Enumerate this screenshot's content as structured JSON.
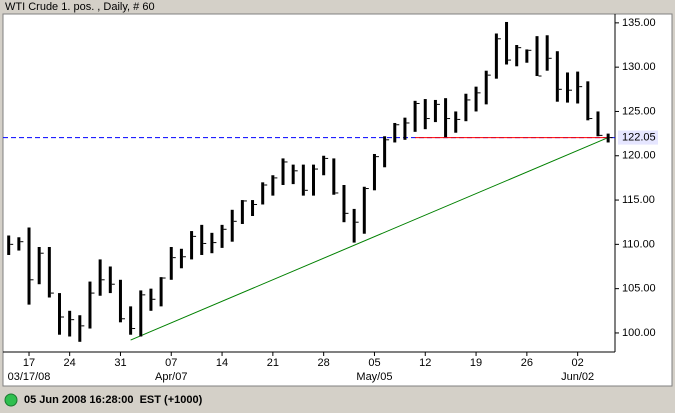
{
  "chart_data": {
    "type": "hlc",
    "title": "WTI Crude 1. pos. , Daily, # 60",
    "status": "05 Jun 2008 16:28:00  EST (+1000)",
    "categories": [
      null,
      null,
      "17",
      null,
      null,
      null,
      "24",
      null,
      null,
      null,
      null,
      "31",
      null,
      null,
      null,
      null,
      "07",
      null,
      null,
      null,
      null,
      "14",
      null,
      null,
      null,
      null,
      "21",
      null,
      null,
      null,
      null,
      "28",
      null,
      null,
      null,
      null,
      "05",
      null,
      null,
      null,
      null,
      "12",
      null,
      null,
      null,
      null,
      "19",
      null,
      null,
      null,
      null,
      "26",
      null,
      null,
      null,
      null,
      "02",
      null,
      null,
      null
    ],
    "sublabels": [
      null,
      null,
      "03/17/08",
      null,
      null,
      null,
      null,
      null,
      null,
      null,
      null,
      null,
      null,
      null,
      null,
      null,
      "Apr/07",
      null,
      null,
      null,
      null,
      null,
      null,
      null,
      null,
      null,
      null,
      null,
      null,
      null,
      null,
      null,
      null,
      null,
      null,
      null,
      "May/05",
      null,
      null,
      null,
      null,
      null,
      null,
      null,
      null,
      null,
      null,
      null,
      null,
      null,
      null,
      null,
      null,
      null,
      null,
      null,
      "Jun/02",
      null,
      null,
      null
    ],
    "high": [
      111.0,
      110.8,
      111.9,
      109.7,
      109.7,
      104.5,
      102.5,
      102.0,
      105.8,
      108.3,
      107.5,
      106.0,
      103.0,
      104.8,
      105.0,
      106.3,
      109.7,
      109.5,
      111.5,
      112.2,
      111.3,
      112.2,
      113.9,
      115.0,
      115.0,
      117.0,
      117.8,
      119.7,
      119.0,
      119.0,
      119.0,
      120.0,
      119.7,
      116.7,
      114.0,
      116.5,
      120.2,
      122.2,
      123.7,
      124.3,
      126.2,
      126.4,
      126.3,
      126.5,
      125.0,
      127.0,
      127.8,
      129.6,
      133.8,
      135.1,
      132.5,
      132.0,
      133.5,
      133.6,
      131.8,
      129.4,
      129.5,
      128.4,
      125.0,
      122.5
    ],
    "low": [
      108.8,
      109.3,
      103.2,
      105.5,
      104.0,
      99.8,
      99.6,
      99.0,
      100.5,
      104.2,
      104.5,
      101.2,
      99.8,
      99.6,
      102.5,
      103.0,
      106.0,
      107.3,
      108.3,
      108.8,
      109.0,
      109.6,
      110.3,
      112.3,
      113.2,
      114.5,
      115.5,
      116.7,
      116.8,
      115.5,
      115.5,
      117.8,
      115.6,
      112.5,
      110.2,
      111.2,
      116.1,
      118.7,
      121.5,
      121.8,
      122.7,
      123.0,
      123.8,
      122.1,
      122.6,
      123.9,
      125.0,
      125.8,
      128.7,
      130.3,
      130.1,
      130.5,
      129.0,
      129.6,
      126.1,
      126.0,
      125.9,
      124.0,
      122.2,
      121.5
    ],
    "close": [
      110.0,
      110.3,
      106.0,
      109.0,
      104.5,
      101.8,
      101.5,
      100.8,
      104.5,
      106.0,
      105.5,
      101.6,
      100.5,
      104.3,
      103.8,
      106.2,
      108.5,
      108.6,
      110.9,
      110.1,
      110.2,
      111.7,
      112.6,
      114.9,
      114.5,
      116.7,
      117.5,
      119.3,
      118.3,
      116.1,
      118.5,
      119.7,
      115.8,
      113.5,
      112.5,
      116.3,
      119.9,
      121.8,
      123.5,
      123.7,
      125.9,
      124.2,
      125.8,
      124.2,
      124.1,
      126.3,
      127.1,
      129.1,
      133.2,
      130.8,
      132.2,
      131.9,
      129.0,
      131.0,
      127.5,
      127.4,
      127.8,
      124.2,
      122.3,
      122.05
    ],
    "color": "#000000",
    "last_value": 122.05,
    "last_value_color": "#0000ff",
    "trendlines": [
      {
        "color": "#008000",
        "points": [
          [
            12,
            99.2
          ],
          [
            59,
            122.05
          ]
        ]
      },
      {
        "color": "#ff0000",
        "points": [
          [
            40,
            122.05
          ],
          [
            59,
            122.05
          ]
        ]
      }
    ],
    "ylim": [
      97.85,
      136.0
    ],
    "yticks": [
      {
        "value": 100,
        "label": "100.00"
      },
      {
        "value": 105,
        "label": "105.00"
      },
      {
        "value": 110,
        "label": "110.00"
      },
      {
        "value": 115,
        "label": "115.00"
      },
      {
        "value": 120,
        "label": "120.00"
      },
      {
        "value": 125,
        "label": "125.00"
      },
      {
        "value": 130,
        "label": "130.00"
      },
      {
        "value": 135,
        "label": "135.00"
      }
    ]
  }
}
